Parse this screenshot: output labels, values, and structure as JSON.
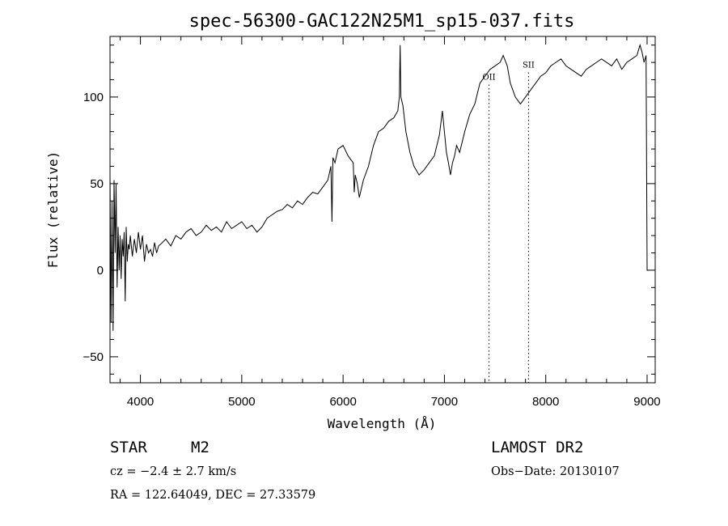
{
  "chart_data": {
    "type": "line",
    "title": "spec-56300-GAC122N25M1_sp15-037.fits",
    "xlabel": "Wavelength (Å)",
    "ylabel": "Flux (relative)",
    "xlim": [
      3700,
      9080
    ],
    "ylim": [
      -65,
      135
    ],
    "x_ticks": [
      4000,
      5000,
      6000,
      7000,
      8000,
      9000
    ],
    "y_ticks": [
      -50,
      0,
      50,
      100
    ],
    "grid": false,
    "line_color": "#000000",
    "series": [
      {
        "x": [
          3700,
          3710,
          3720,
          3730,
          3740,
          3750,
          3760,
          3770,
          3780,
          3790,
          3800,
          3810,
          3820,
          3830,
          3840,
          3850,
          3860,
          3870,
          3880,
          3890,
          3900,
          3920,
          3940,
          3960,
          3980,
          4000,
          4020,
          4040,
          4060,
          4080,
          4100,
          4120,
          4140,
          4160,
          4180,
          4200,
          4250,
          4300,
          4350,
          4400,
          4450,
          4500,
          4550,
          4600,
          4650,
          4700,
          4750,
          4800,
          4850,
          4900,
          4950,
          5000,
          5050,
          5100,
          5150,
          5200,
          5250,
          5300,
          5350,
          5400,
          5450,
          5500,
          5550,
          5600,
          5650,
          5700,
          5750,
          5800,
          5850,
          5880,
          5890,
          5900,
          5920,
          5950,
          6000,
          6050,
          6100,
          6110,
          6120,
          6140,
          6160,
          6200,
          6250,
          6300,
          6350,
          6400,
          6450,
          6500,
          6540,
          6555,
          6563,
          6570,
          6590,
          6620,
          6660,
          6700,
          6750,
          6800,
          6850,
          6900,
          6950,
          6980,
          7000,
          7020,
          7040,
          7060,
          7080,
          7100,
          7120,
          7150,
          7200,
          7250,
          7300,
          7350,
          7400,
          7450,
          7500,
          7550,
          7580,
          7620,
          7650,
          7700,
          7750,
          7800,
          7850,
          7900,
          7950,
          8000,
          8050,
          8100,
          8150,
          8200,
          8250,
          8300,
          8350,
          8400,
          8450,
          8500,
          8550,
          8600,
          8650,
          8700,
          8750,
          8800,
          8850,
          8900,
          8930,
          8950,
          8970,
          8990,
          9000,
          9010
        ],
        "y": [
          55,
          -30,
          40,
          -35,
          52,
          10,
          50,
          -10,
          25,
          0,
          20,
          -5,
          18,
          8,
          22,
          -18,
          25,
          5,
          15,
          12,
          20,
          8,
          18,
          10,
          22,
          12,
          20,
          5,
          15,
          10,
          12,
          8,
          16,
          10,
          14,
          15,
          18,
          14,
          20,
          18,
          22,
          24,
          20,
          22,
          26,
          23,
          25,
          22,
          28,
          24,
          26,
          28,
          24,
          26,
          22,
          25,
          30,
          32,
          34,
          35,
          38,
          36,
          40,
          38,
          42,
          45,
          44,
          48,
          52,
          60,
          28,
          65,
          62,
          70,
          72,
          66,
          62,
          45,
          55,
          50,
          42,
          52,
          60,
          72,
          80,
          82,
          86,
          88,
          92,
          100,
          130,
          100,
          95,
          80,
          68,
          60,
          55,
          58,
          62,
          66,
          78,
          92,
          80,
          68,
          62,
          55,
          62,
          66,
          72,
          68,
          80,
          90,
          96,
          108,
          112,
          116,
          118,
          120,
          124,
          118,
          108,
          100,
          96,
          100,
          104,
          108,
          112,
          114,
          118,
          120,
          122,
          118,
          116,
          114,
          112,
          116,
          118,
          120,
          122,
          120,
          118,
          122,
          116,
          120,
          122,
          124,
          130,
          126,
          120,
          124,
          0,
          0
        ]
      }
    ],
    "line_ids": [
      {
        "label": "OII",
        "x": 7440,
        "y_label": 110
      },
      {
        "label": "SII",
        "x": 7830,
        "y_label": 117
      }
    ]
  },
  "info": {
    "object_class": "STAR",
    "subclass": "M2",
    "cz": "cz = −2.4 ± 2.7 km/s",
    "coords": "RA = 122.64049, DEC =  27.33579",
    "survey": "LAMOST DR2",
    "obs_date": "Obs−Date: 20130107"
  }
}
